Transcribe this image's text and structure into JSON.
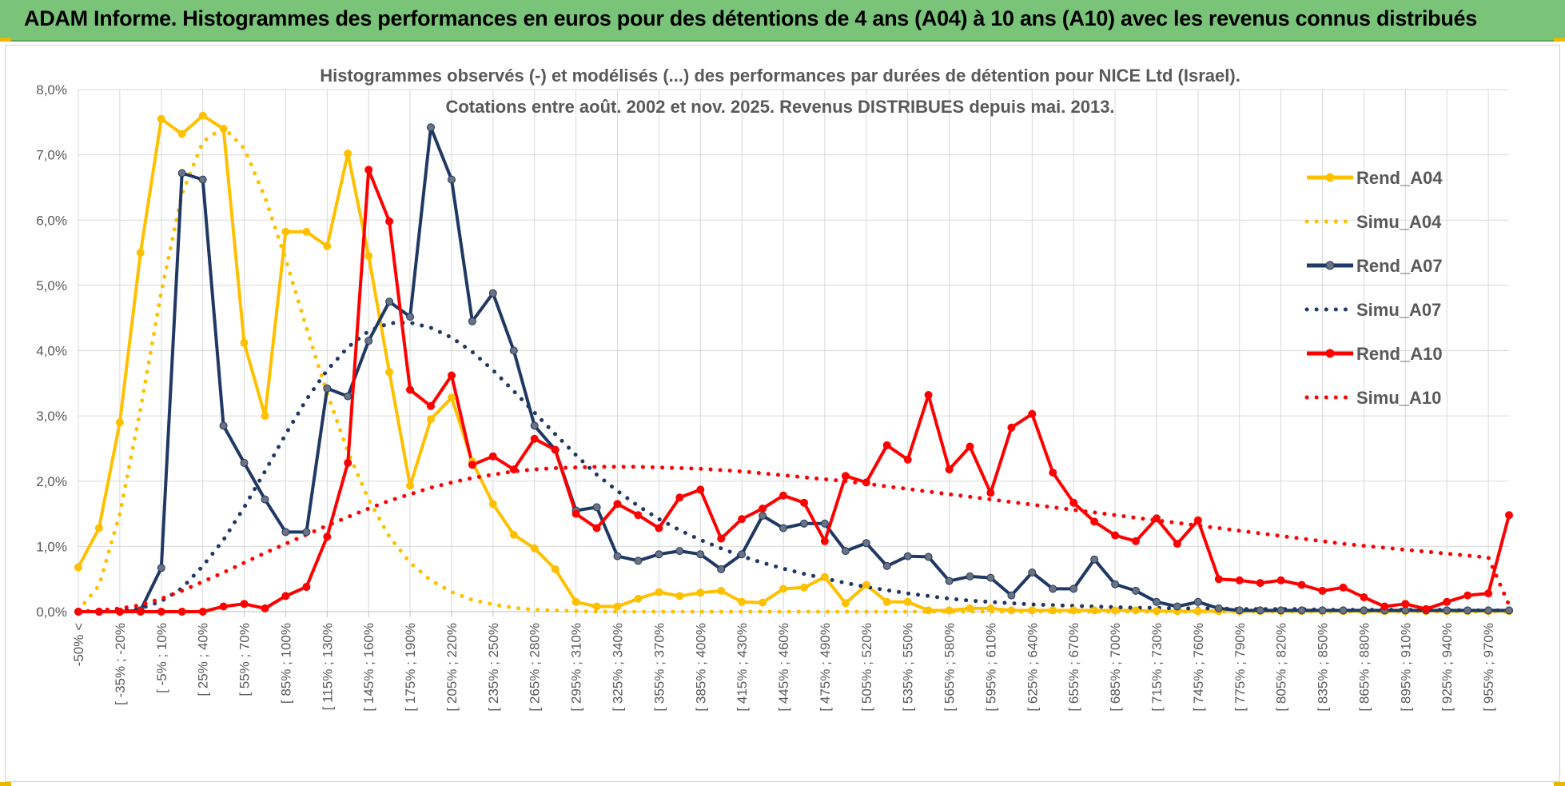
{
  "banner": {
    "title": "ADAM Informe. Histogrammes des performances en euros pour des détentions de 4 ans (A04) à 10 ans (A10) avec les revenus connus distribués"
  },
  "colors": {
    "banner_bg": "#7ac47a",
    "gold": "#ffc000",
    "navy": "#1f3864",
    "red": "#ff0000",
    "grid": "#d9d9d9"
  },
  "chart_data": {
    "type": "line",
    "title_line1": "Histogrammes observés (-) et modélisés (...) des performances par durées de détention pour NICE Ltd (Israel).",
    "title_line2": "Cotations entre août. 2002 et nov. 2025. Revenus DISTRIBUES depuis mai. 2013.",
    "ylim": [
      0,
      8
    ],
    "yticks": [
      "0,0%",
      "1,0%",
      "2,0%",
      "3,0%",
      "4,0%",
      "5,0%",
      "6,0%",
      "7,0%",
      "8,0%"
    ],
    "grid": true,
    "legend_position": "top-right",
    "x_labels": [
      "-50% <",
      "[ -35% ; -20%",
      "[ -5% ; 10%",
      "[ 25% ; 40%",
      "[ 55% ; 70%",
      "[ 85% ; 100%",
      "[ 115% ; 130%",
      "[ 145% ; 160%",
      "[ 175% ; 190%",
      "[ 205% ; 220%",
      "[ 235% ; 250%",
      "[ 265% ; 280%",
      "[ 295% ; 310%",
      "[ 325% ; 340%",
      "[ 355% ; 370%",
      "[ 385% ; 400%",
      "[ 415% ; 430%",
      "[ 445% ; 460%",
      "[ 475% ; 490%",
      "[ 505% ; 520%",
      "[ 535% ; 550%",
      "[ 565% ; 580%",
      "[ 595% ; 610%",
      "[ 625% ; 640%",
      "[ 655% ; 670%",
      "[ 685% ; 700%",
      "[ 715% ; 730%",
      "[ 745% ; 760%",
      "[ 775% ; 790%",
      "[ 805% ; 820%",
      "[ 835% ; 850%",
      "[ 865% ; 880%",
      "[ 895% ; 910%",
      "[ 925% ; 940%",
      "[ 955% ; 970%"
    ],
    "series": [
      {
        "name": "Rend_A04",
        "style": "solid",
        "color": "#ffc000",
        "values": [
          0.68,
          1.28,
          2.9,
          5.5,
          7.55,
          7.32,
          7.6,
          7.4,
          4.12,
          3.0,
          5.82,
          5.82,
          5.6,
          7.02,
          5.45,
          3.67,
          1.93,
          2.95,
          3.28,
          2.3,
          1.65,
          1.18,
          0.97,
          0.65,
          0.15,
          0.08,
          0.08,
          0.2,
          0.3,
          0.24,
          0.29,
          0.32,
          0.15,
          0.14,
          0.35,
          0.37,
          0.53,
          0.13,
          0.41,
          0.15,
          0.15,
          0.02,
          0.02,
          0.05,
          0.05,
          0.02,
          0.02,
          0.02,
          0.02,
          0.02,
          0.02,
          0.02,
          0.01,
          0.01,
          0.01,
          0.01,
          0.01,
          0.01,
          0.01,
          0.01,
          0.01,
          0.01,
          0.01,
          0.01,
          0.01,
          0.01,
          0.01,
          0.01,
          0.01,
          0.01
        ]
      },
      {
        "name": "Simu_A04",
        "style": "dotted",
        "color": "#ffc000",
        "values": [
          0.02,
          0.4,
          1.5,
          3.1,
          4.9,
          6.4,
          7.2,
          7.42,
          7.1,
          6.35,
          5.4,
          4.35,
          3.35,
          2.45,
          1.72,
          1.15,
          0.75,
          0.48,
          0.3,
          0.18,
          0.11,
          0.06,
          0.03,
          0.02,
          0.01,
          0.0,
          0.0,
          0.0,
          0.0,
          0.0,
          0.0,
          0.0,
          0.0,
          0.0,
          0.0,
          0.0,
          0.0,
          0.0,
          0.0,
          0.0,
          0.0,
          0.0,
          0.0,
          0.0,
          0.0,
          0.0,
          0.0,
          0.0,
          0.0,
          0.0,
          0.0,
          0.0,
          0.0,
          0.0,
          0.0,
          0.0,
          0.0,
          0.0,
          0.0,
          0.0,
          0.0,
          0.0,
          0.0,
          0.0,
          0.0,
          0.0,
          0.0,
          0.0,
          0.0,
          0.0
        ]
      },
      {
        "name": "Rend_A07",
        "style": "solid",
        "color": "#1f3864",
        "values": [
          0.0,
          0.0,
          0.0,
          0.02,
          0.67,
          6.72,
          6.62,
          2.85,
          2.28,
          1.72,
          1.22,
          1.22,
          3.42,
          3.3,
          4.15,
          4.75,
          4.52,
          7.42,
          6.62,
          4.45,
          4.88,
          4.0,
          2.85,
          2.48,
          1.55,
          1.6,
          0.85,
          0.78,
          0.88,
          0.93,
          0.88,
          0.65,
          0.88,
          1.47,
          1.28,
          1.35,
          1.35,
          0.93,
          1.05,
          0.7,
          0.85,
          0.84,
          0.47,
          0.54,
          0.52,
          0.25,
          0.6,
          0.35,
          0.35,
          0.8,
          0.42,
          0.32,
          0.15,
          0.08,
          0.15,
          0.05,
          0.02,
          0.02,
          0.02,
          0.02,
          0.02,
          0.02,
          0.02,
          0.02,
          0.02,
          0.02,
          0.02,
          0.02,
          0.02,
          0.02
        ]
      },
      {
        "name": "Simu_A07",
        "style": "dotted",
        "color": "#1f3864",
        "values": [
          0.0,
          0.01,
          0.02,
          0.05,
          0.16,
          0.36,
          0.7,
          1.1,
          1.6,
          2.15,
          2.72,
          3.25,
          3.7,
          4.05,
          4.3,
          4.42,
          4.43,
          4.35,
          4.2,
          3.98,
          3.7,
          3.38,
          3.05,
          2.72,
          2.4,
          2.1,
          1.85,
          1.62,
          1.42,
          1.25,
          1.1,
          0.97,
          0.85,
          0.75,
          0.66,
          0.58,
          0.51,
          0.44,
          0.38,
          0.33,
          0.28,
          0.24,
          0.2,
          0.17,
          0.15,
          0.13,
          0.11,
          0.1,
          0.09,
          0.08,
          0.07,
          0.06,
          0.06,
          0.05,
          0.05,
          0.05,
          0.04,
          0.04,
          0.04,
          0.04,
          0.03,
          0.03,
          0.03,
          0.03,
          0.03,
          0.03,
          0.03,
          0.02,
          0.02,
          0.02
        ]
      },
      {
        "name": "Rend_A10",
        "style": "solid",
        "color": "#ff0000",
        "values": [
          0.0,
          0.0,
          0.0,
          0.0,
          0.0,
          0.0,
          0.0,
          0.08,
          0.12,
          0.05,
          0.24,
          0.38,
          1.15,
          2.28,
          6.77,
          5.98,
          3.4,
          3.15,
          3.62,
          2.25,
          2.38,
          2.18,
          2.65,
          2.48,
          1.5,
          1.28,
          1.65,
          1.48,
          1.28,
          1.75,
          1.87,
          1.12,
          1.42,
          1.58,
          1.78,
          1.67,
          1.08,
          2.08,
          1.98,
          2.55,
          2.33,
          3.32,
          2.18,
          2.53,
          1.82,
          2.82,
          3.03,
          2.13,
          1.67,
          1.38,
          1.17,
          1.08,
          1.43,
          1.04,
          1.4,
          0.5,
          0.48,
          0.44,
          0.48,
          0.41,
          0.32,
          0.37,
          0.22,
          0.08,
          0.12,
          0.04,
          0.15,
          0.25,
          0.28,
          1.48
        ]
      },
      {
        "name": "Simu_A10",
        "style": "dotted",
        "color": "#ff0000",
        "values": [
          0.0,
          0.02,
          0.05,
          0.1,
          0.2,
          0.32,
          0.46,
          0.6,
          0.75,
          0.9,
          1.04,
          1.18,
          1.32,
          1.45,
          1.58,
          1.7,
          1.8,
          1.9,
          1.98,
          2.05,
          2.1,
          2.15,
          2.18,
          2.2,
          2.21,
          2.22,
          2.22,
          2.22,
          2.21,
          2.2,
          2.19,
          2.17,
          2.15,
          2.12,
          2.09,
          2.06,
          2.03,
          2.0,
          1.96,
          1.92,
          1.88,
          1.84,
          1.8,
          1.76,
          1.72,
          1.68,
          1.64,
          1.6,
          1.56,
          1.52,
          1.48,
          1.44,
          1.4,
          1.36,
          1.32,
          1.28,
          1.24,
          1.2,
          1.16,
          1.12,
          1.08,
          1.04,
          1.01,
          0.98,
          0.95,
          0.92,
          0.89,
          0.86,
          0.83,
          0.1
        ]
      }
    ]
  }
}
